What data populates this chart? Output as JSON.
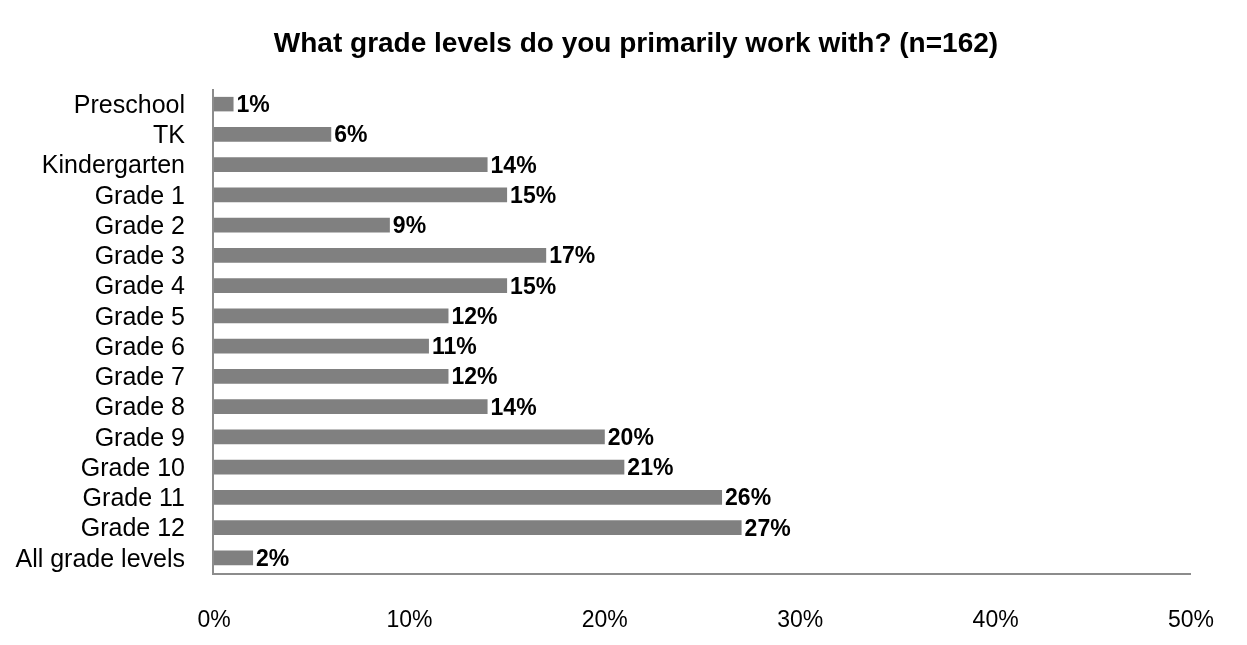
{
  "chart_data": {
    "type": "bar",
    "orientation": "horizontal",
    "title": "What grade levels do you primarily work with? (n=162)",
    "categories": [
      "Preschool",
      "TK",
      "Kindergarten",
      "Grade 1",
      "Grade 2",
      "Grade 3",
      "Grade 4",
      "Grade 5",
      "Grade 6",
      "Grade 7",
      "Grade 8",
      "Grade 9",
      "Grade 10",
      "Grade 11",
      "Grade 12",
      "All grade levels"
    ],
    "values": [
      1,
      6,
      14,
      15,
      9,
      17,
      15,
      12,
      11,
      12,
      14,
      20,
      21,
      26,
      27,
      2
    ],
    "value_labels": [
      "1%",
      "6%",
      "14%",
      "15%",
      "9%",
      "17%",
      "15%",
      "12%",
      "11%",
      "12%",
      "14%",
      "20%",
      "21%",
      "26%",
      "27%",
      "2%"
    ],
    "color": "#808080",
    "xlim": [
      0,
      50
    ],
    "xticks": [
      {
        "value": 0,
        "label": "0%"
      },
      {
        "value": 10,
        "label": "10%"
      },
      {
        "value": 20,
        "label": "20%"
      },
      {
        "value": 30,
        "label": "30%"
      },
      {
        "value": 40,
        "label": "40%"
      },
      {
        "value": 50,
        "label": "50%"
      }
    ]
  }
}
